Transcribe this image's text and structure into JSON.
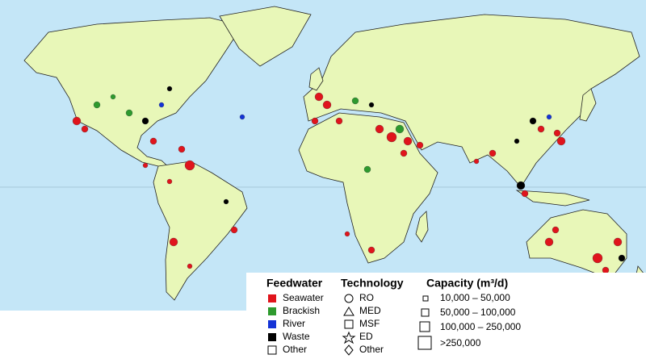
{
  "legend": {
    "feedwater": {
      "title": "Feedwater",
      "items": [
        "Seawater",
        "Brackish",
        "River",
        "Waste",
        "Other"
      ]
    },
    "technology": {
      "title": "Technology",
      "items": [
        "RO",
        "MED",
        "MSF",
        "ED",
        "Other"
      ]
    },
    "capacity": {
      "title": "Capacity (m³/d)",
      "items": [
        "10,000 – 50,000",
        "50,000 – 100,000",
        "100,000 – 250,000",
        ">250,000"
      ]
    }
  }
}
